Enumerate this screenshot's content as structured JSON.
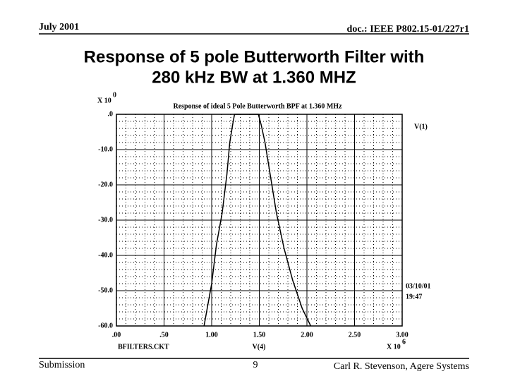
{
  "header": {
    "left": "July 2001",
    "right": "doc.: IEEE P802.15-01/227r1"
  },
  "title_lines": [
    "Response of 5 pole Butterworth Filter with",
    "280 kHz BW at 1.360 MHZ"
  ],
  "footer": {
    "left": "Submission",
    "center": "9",
    "right": "Carl R. Stevenson, Agere Systems"
  },
  "chart_data": {
    "type": "line",
    "title": "Response of  ideal  5 Pole Butterworth BPF at 1.360 MHz",
    "y_multiplier": {
      "base": "X 10",
      "exponent": "0"
    },
    "x_multiplier": {
      "base": "X 10",
      "exponent": "6"
    },
    "xlabel": "V(4)",
    "file_label": "BFILTERS.CKT",
    "date_label": "03/10/01",
    "time_label": "19:47",
    "x": [
      0.92,
      1.0,
      1.05,
      1.11,
      1.16,
      1.19,
      1.22,
      1.24,
      1.3,
      1.36,
      1.42,
      1.49,
      1.52,
      1.56,
      1.62,
      1.68,
      1.76,
      1.85,
      1.95,
      2.04
    ],
    "series": [
      {
        "name": "V(1)",
        "color": "#000000",
        "values": [
          -60,
          -48,
          -37,
          -28,
          -17,
          -8,
          -3,
          0,
          0,
          0,
          0,
          0,
          -3,
          -8,
          -18,
          -28,
          -38,
          -47,
          -55,
          -60
        ]
      }
    ],
    "xlim": [
      0,
      3
    ],
    "xticks": [
      {
        "value": 0,
        "label": ".00"
      },
      {
        "value": 0.5,
        "label": ".50"
      },
      {
        "value": 1,
        "label": "1.00"
      },
      {
        "value": 1.5,
        "label": "1.50"
      },
      {
        "value": 2,
        "label": "2.00"
      },
      {
        "value": 2.5,
        "label": "2.50"
      },
      {
        "value": 3,
        "label": "3.00"
      }
    ],
    "ylim": [
      -60,
      0
    ],
    "yticks": [
      {
        "value": 0,
        "label": ".0"
      },
      {
        "value": -10,
        "label": "-10.0"
      },
      {
        "value": -20,
        "label": "-20.0"
      },
      {
        "value": -30,
        "label": "-30.0"
      },
      {
        "value": -40,
        "label": "-40.0"
      },
      {
        "value": -50,
        "label": "-50.0"
      },
      {
        "value": -60,
        "label": "-60.0"
      }
    ],
    "grid": true,
    "minor_grid": true
  }
}
